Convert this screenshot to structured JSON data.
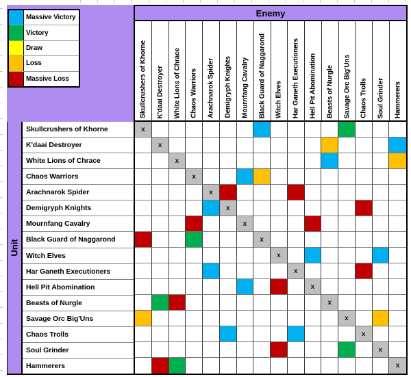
{
  "colors": {
    "background_purple": "#AF8CF0",
    "self_cell_gray": "#BFBFBF",
    "massive_victory": "#00B0F0",
    "victory": "#00B050",
    "draw": "#FFFF00",
    "loss": "#FFC000",
    "massive_loss": "#C00000"
  },
  "legend": {
    "items": [
      {
        "code": "MV",
        "label": "Massive Victory",
        "color": "#00B0F0"
      },
      {
        "code": "V",
        "label": "Victory",
        "color": "#00B050"
      },
      {
        "code": "D",
        "label": "Draw",
        "color": "#FFFF00"
      },
      {
        "code": "L",
        "label": "Loss",
        "color": "#FFC000"
      },
      {
        "code": "ML",
        "label": "Massive Loss",
        "color": "#C00000"
      }
    ]
  },
  "chart_data": {
    "type": "heatmap",
    "col_axis_label": "Enemy",
    "row_axis_label": "Unit",
    "self_marker": "x",
    "code_colors": {
      "MV": "#00B0F0",
      "V": "#00B050",
      "D": "#FFFF00",
      "L": "#FFC000",
      "ML": "#C00000",
      "X": "#BFBFBF"
    },
    "categories": [
      "Skullcrushers of Khorne",
      "K'daai Destroyer",
      "White Lions of Chrace",
      "Chaos Warriors",
      "Arachnarok Spider",
      "Demigryph Knights",
      "Mournfang Cavalry",
      "Black Guard of Naggarond",
      "Witch Elves",
      "Har Ganeth Executioners",
      "Hell Pit Abomination",
      "Beasts of Nurgle",
      "Savage Orc Big'Uns",
      "Chaos Trolls",
      "Soul Grinder",
      "Hammerers"
    ],
    "matrix": [
      [
        "X",
        "",
        "",
        "",
        "",
        "",
        "",
        "MV",
        "",
        "",
        "",
        "",
        "V",
        "",
        "",
        ""
      ],
      [
        "",
        "X",
        "",
        "",
        "",
        "",
        "",
        "",
        "",
        "",
        "",
        "L",
        "",
        "",
        "",
        "MV"
      ],
      [
        "",
        "",
        "X",
        "",
        "",
        "",
        "",
        "",
        "",
        "",
        "",
        "MV",
        "",
        "",
        "",
        "L"
      ],
      [
        "",
        "",
        "",
        "X",
        "",
        "",
        "MV",
        "L",
        "",
        "",
        "",
        "",
        "",
        "",
        "",
        ""
      ],
      [
        "",
        "",
        "",
        "",
        "X",
        "ML",
        "",
        "",
        "",
        "ML",
        "",
        "",
        "",
        "",
        "",
        ""
      ],
      [
        "",
        "",
        "",
        "",
        "MV",
        "X",
        "",
        "",
        "",
        "",
        "",
        "",
        "",
        "ML",
        "",
        ""
      ],
      [
        "",
        "",
        "",
        "ML",
        "",
        "",
        "X",
        "",
        "",
        "",
        "ML",
        "",
        "",
        "",
        "",
        ""
      ],
      [
        "ML",
        "",
        "",
        "V",
        "",
        "",
        "",
        "X",
        "",
        "",
        "",
        "",
        "",
        "",
        "",
        ""
      ],
      [
        "",
        "",
        "",
        "",
        "",
        "",
        "",
        "",
        "X",
        "",
        "MV",
        "",
        "",
        "",
        "MV",
        ""
      ],
      [
        "",
        "",
        "",
        "",
        "MV",
        "",
        "",
        "",
        "",
        "X",
        "",
        "",
        "",
        "ML",
        "",
        ""
      ],
      [
        "",
        "",
        "",
        "",
        "",
        "",
        "MV",
        "",
        "ML",
        "",
        "X",
        "",
        "",
        "",
        "",
        ""
      ],
      [
        "",
        "V",
        "ML",
        "",
        "",
        "",
        "",
        "",
        "",
        "",
        "",
        "X",
        "",
        "",
        "",
        ""
      ],
      [
        "L",
        "",
        "",
        "",
        "",
        "",
        "",
        "",
        "",
        "",
        "",
        "",
        "X",
        "",
        "L",
        ""
      ],
      [
        "",
        "",
        "",
        "",
        "",
        "MV",
        "",
        "",
        "",
        "MV",
        "",
        "",
        "",
        "X",
        "",
        ""
      ],
      [
        "",
        "",
        "",
        "",
        "",
        "",
        "",
        "",
        "ML",
        "",
        "",
        "",
        "V",
        "",
        "X",
        ""
      ],
      [
        "",
        "ML",
        "V",
        "",
        "",
        "",
        "",
        "",
        "",
        "",
        "",
        "",
        "",
        "",
        "",
        "X"
      ]
    ]
  }
}
